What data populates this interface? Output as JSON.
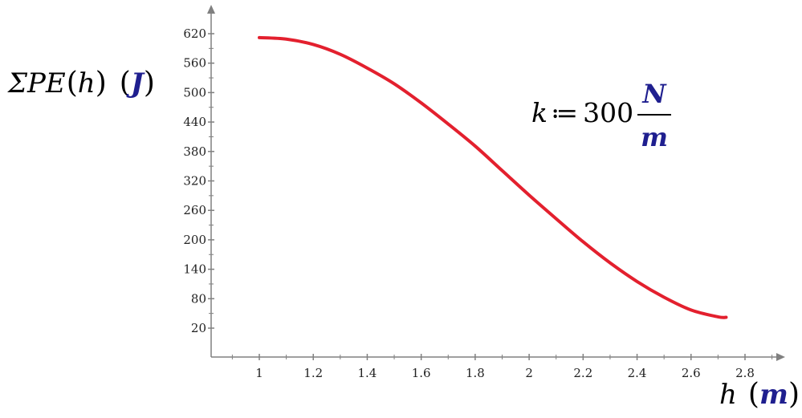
{
  "chart_data": {
    "type": "line",
    "ylabel": {
      "sym": "ΣPE",
      "arg": "h",
      "unit": "J"
    },
    "xlabel": {
      "sym": "h",
      "unit": "m"
    },
    "annotation": {
      "var": "k",
      "op": "≔",
      "value": "300",
      "unit_num": "N",
      "unit_den": "m"
    },
    "xlim": [
      0.82,
      2.97
    ],
    "ylim": [
      -30,
      655
    ],
    "x_ticks": [
      "1",
      "1.2",
      "1.4",
      "1.6",
      "1.8",
      "2",
      "2.2",
      "2.4",
      "2.6",
      "2.8"
    ],
    "y_ticks": [
      "20",
      "80",
      "140",
      "200",
      "260",
      "320",
      "380",
      "440",
      "500",
      "560",
      "620"
    ],
    "grid": false,
    "series": [
      {
        "color": "#e3202e",
        "x": [
          1.0,
          1.1,
          1.2,
          1.3,
          1.4,
          1.5,
          1.6,
          1.7,
          1.8,
          1.9,
          2.0,
          2.1,
          2.2,
          2.3,
          2.4,
          2.5,
          2.6,
          2.7,
          2.73
        ],
        "y": [
          612,
          609,
          598,
          578,
          550,
          518,
          479,
          436,
          391,
          341,
          291,
          243,
          196,
          153,
          115,
          83,
          57,
          43,
          42
        ]
      }
    ]
  },
  "colors": {
    "axis": "#808080",
    "curve": "#e3202e",
    "unit": "#1f1f8f"
  }
}
